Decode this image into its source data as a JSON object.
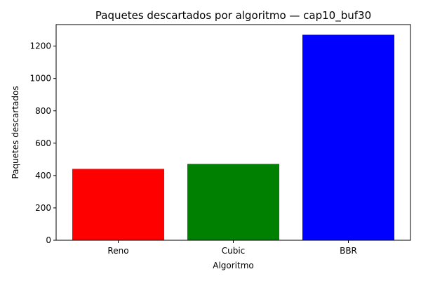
{
  "chart_data": {
    "type": "bar",
    "title": "Paquetes descartados por algoritmo — cap10_buf30",
    "xlabel": "Algoritmo",
    "ylabel": "Paquetes descartados",
    "categories": [
      "Reno",
      "Cubic",
      "BBR"
    ],
    "values": [
      441,
      472,
      1270
    ],
    "colors": [
      "#ff0000",
      "#008000",
      "#0000ff"
    ],
    "ylim": [
      0,
      1333
    ],
    "yticks": [
      0,
      200,
      400,
      600,
      800,
      1000,
      1200
    ],
    "grid": false,
    "legend": "none"
  }
}
